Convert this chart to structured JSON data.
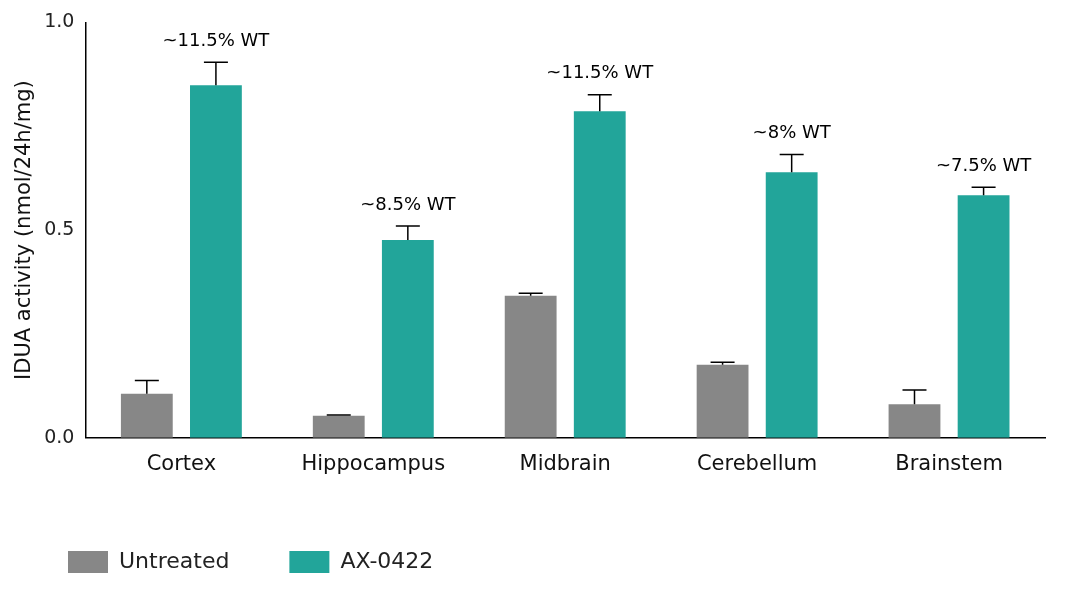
{
  "chart_data": {
    "type": "bar",
    "ylabel": "IDUA activity (nmol/24h/mg)",
    "categories": [
      "Cortex",
      "Hippocampus",
      "Midbrain",
      "Cerebellum",
      "Brainstem"
    ],
    "series": [
      {
        "name": "Untreated",
        "color": "#878787",
        "values": [
          0.106,
          0.053,
          0.342,
          0.176,
          0.081
        ],
        "errors": [
          [
            0.106,
            0.138
          ],
          [
            0.053,
            0.055
          ],
          [
            0.342,
            0.348
          ],
          [
            0.176,
            0.182
          ],
          [
            0.081,
            0.115
          ]
        ]
      },
      {
        "name": "AX-0422",
        "color": "#22a59a",
        "values": [
          0.849,
          0.476,
          0.786,
          0.639,
          0.584
        ],
        "errors": [
          [
            0.849,
            0.904
          ],
          [
            0.476,
            0.51
          ],
          [
            0.786,
            0.826
          ],
          [
            0.639,
            0.682
          ],
          [
            0.584,
            0.603
          ]
        ]
      }
    ],
    "ylim": [
      0,
      1
    ],
    "yticks": [
      {
        "value": 0,
        "label": "0.0"
      },
      {
        "value": 0.5,
        "label": "0.5"
      },
      {
        "value": 1,
        "label": "1.0"
      }
    ],
    "annotations": [
      "~11.5% WT",
      "~8.5% WT",
      "~11.5% WT",
      "~8% WT",
      "~7.5% WT"
    ],
    "grid": false,
    "legend": "bottom left"
  }
}
